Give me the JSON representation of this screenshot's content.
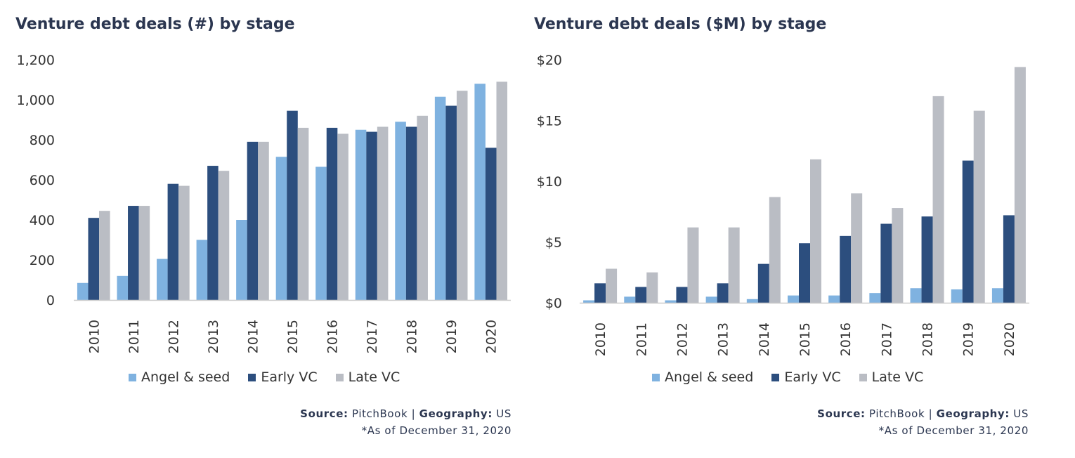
{
  "colors": {
    "angel": "#7fb2e0",
    "early": "#2c4e7e",
    "late": "#babdc4",
    "axis": "#c9c9c9"
  },
  "charts": [
    {
      "title": "Venture debt deals (#) by stage",
      "legend": [
        "Angel & seed",
        "Early VC",
        "Late VC"
      ],
      "source": {
        "label": "Source:",
        "value": "PitchBook",
        "sep": "|",
        "geo_label": "Geography:",
        "geo_value": "US",
        "note": "*As of December 31, 2020"
      }
    },
    {
      "title": "Venture debt deals ($M) by stage",
      "legend": [
        "Angel & seed",
        "Early VC",
        "Late VC"
      ],
      "source": {
        "label": "Source:",
        "value": "PitchBook",
        "sep": "|",
        "geo_label": "Geography:",
        "geo_value": "US",
        "note": "*As of December 31, 2020"
      }
    }
  ],
  "chart_data": [
    {
      "type": "bar",
      "title": "Venture debt deals (#) by stage",
      "categories": [
        "2010",
        "2011",
        "2012",
        "2013",
        "2014",
        "2015",
        "2016",
        "2017",
        "2018",
        "2019",
        "2020"
      ],
      "series": [
        {
          "name": "Angel & seed",
          "values": [
            85,
            120,
            205,
            300,
            400,
            715,
            665,
            850,
            890,
            1015,
            1080
          ]
        },
        {
          "name": "Early VC",
          "values": [
            410,
            470,
            580,
            670,
            790,
            945,
            860,
            840,
            865,
            970,
            760
          ]
        },
        {
          "name": "Late VC",
          "values": [
            445,
            470,
            570,
            645,
            790,
            860,
            830,
            865,
            920,
            1045,
            1090
          ]
        }
      ],
      "ylim": [
        0,
        1200
      ],
      "yticks": [
        "0",
        "200",
        "400",
        "600",
        "800",
        "1,000",
        "1,200"
      ],
      "legend_position": "bottom"
    },
    {
      "type": "bar",
      "title": "Venture debt deals ($M) by stage",
      "categories": [
        "2010",
        "2011",
        "2012",
        "2013",
        "2014",
        "2015",
        "2016",
        "2017",
        "2018",
        "2019",
        "2020"
      ],
      "series": [
        {
          "name": "Angel & seed",
          "values": [
            0.2,
            0.5,
            0.2,
            0.5,
            0.3,
            0.6,
            0.6,
            0.8,
            1.2,
            1.1,
            1.2
          ]
        },
        {
          "name": "Early VC",
          "values": [
            1.6,
            1.3,
            1.3,
            1.6,
            3.2,
            4.9,
            5.5,
            6.5,
            7.1,
            11.7,
            7.2
          ]
        },
        {
          "name": "Late VC",
          "values": [
            2.8,
            2.5,
            6.2,
            6.2,
            8.7,
            11.8,
            9.0,
            7.8,
            17.0,
            15.8,
            19.4
          ]
        }
      ],
      "ylim": [
        0,
        20
      ],
      "yticks": [
        "$0",
        "$5",
        "$10",
        "$15",
        "$20"
      ],
      "legend_position": "bottom"
    }
  ]
}
